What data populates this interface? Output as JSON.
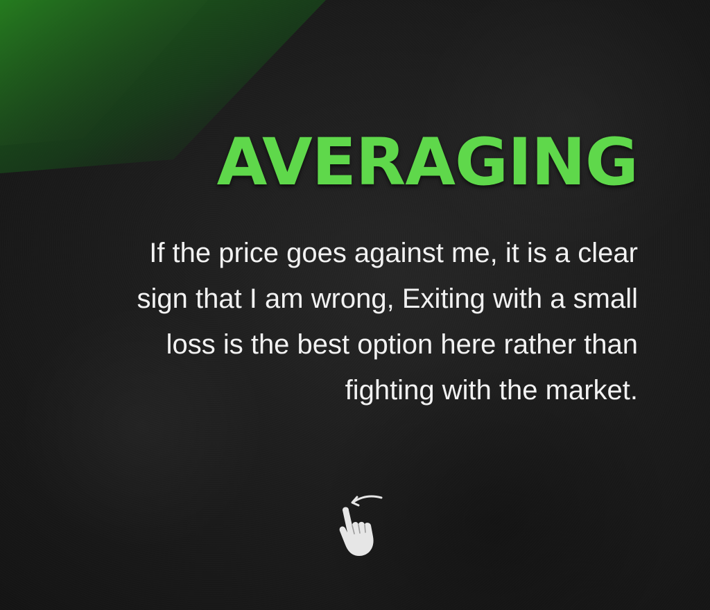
{
  "slide": {
    "title": "AVERAGING",
    "lines": [
      "If the price goes against me, it is a clear",
      "sign that I am wrong, Exiting with a small",
      "loss is the best option here rather than",
      "fighting with the market."
    ],
    "icon": "swipe-left-hand-icon"
  },
  "colors": {
    "accent": "#5fd84b",
    "background": "#1b1b1b",
    "text": "#f2f2f2",
    "icon": "#e6e6e6"
  }
}
